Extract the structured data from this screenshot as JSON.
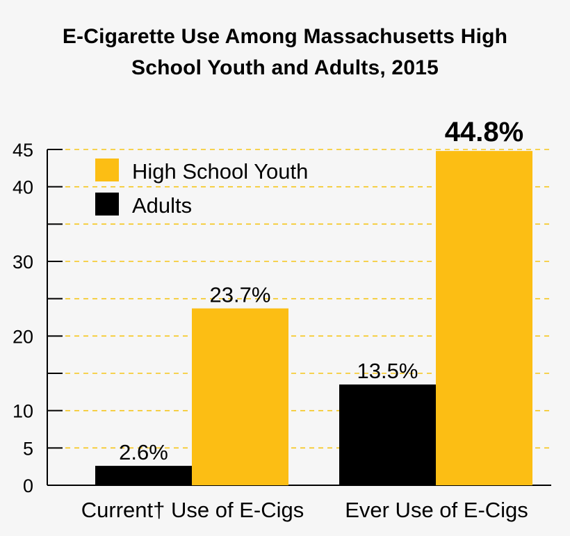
{
  "chart_data": {
    "type": "bar",
    "title_line1": "E-Cigarette Use Among Massachusetts High",
    "title_line2": "School Youth and Adults, 2015",
    "categories": [
      "Current† Use of E-Cigs",
      "Ever Use of E-Cigs"
    ],
    "series": [
      {
        "name": "Adults",
        "values": [
          2.6,
          13.5
        ],
        "labels": [
          "2.6%",
          "13.5%"
        ],
        "color": "#000000"
      },
      {
        "name": "High School Youth",
        "values": [
          23.7,
          44.8
        ],
        "labels": [
          "23.7%",
          "44.8%"
        ],
        "color": "#fcbe14"
      }
    ],
    "ylim": [
      0,
      45
    ],
    "y_tick_labels": [
      0,
      5,
      10,
      20,
      30,
      40,
      45
    ],
    "y_minor_ticks": [
      0,
      5,
      10,
      15,
      20,
      25,
      30,
      35,
      40,
      45
    ],
    "gridlines": [
      5,
      10,
      15,
      20,
      25,
      30,
      35,
      40,
      45
    ],
    "grid_color": "#f5c518",
    "highlight_label": "44.8%",
    "legend": {
      "placement": "top-left",
      "order": [
        "High School Youth",
        "Adults"
      ]
    }
  }
}
